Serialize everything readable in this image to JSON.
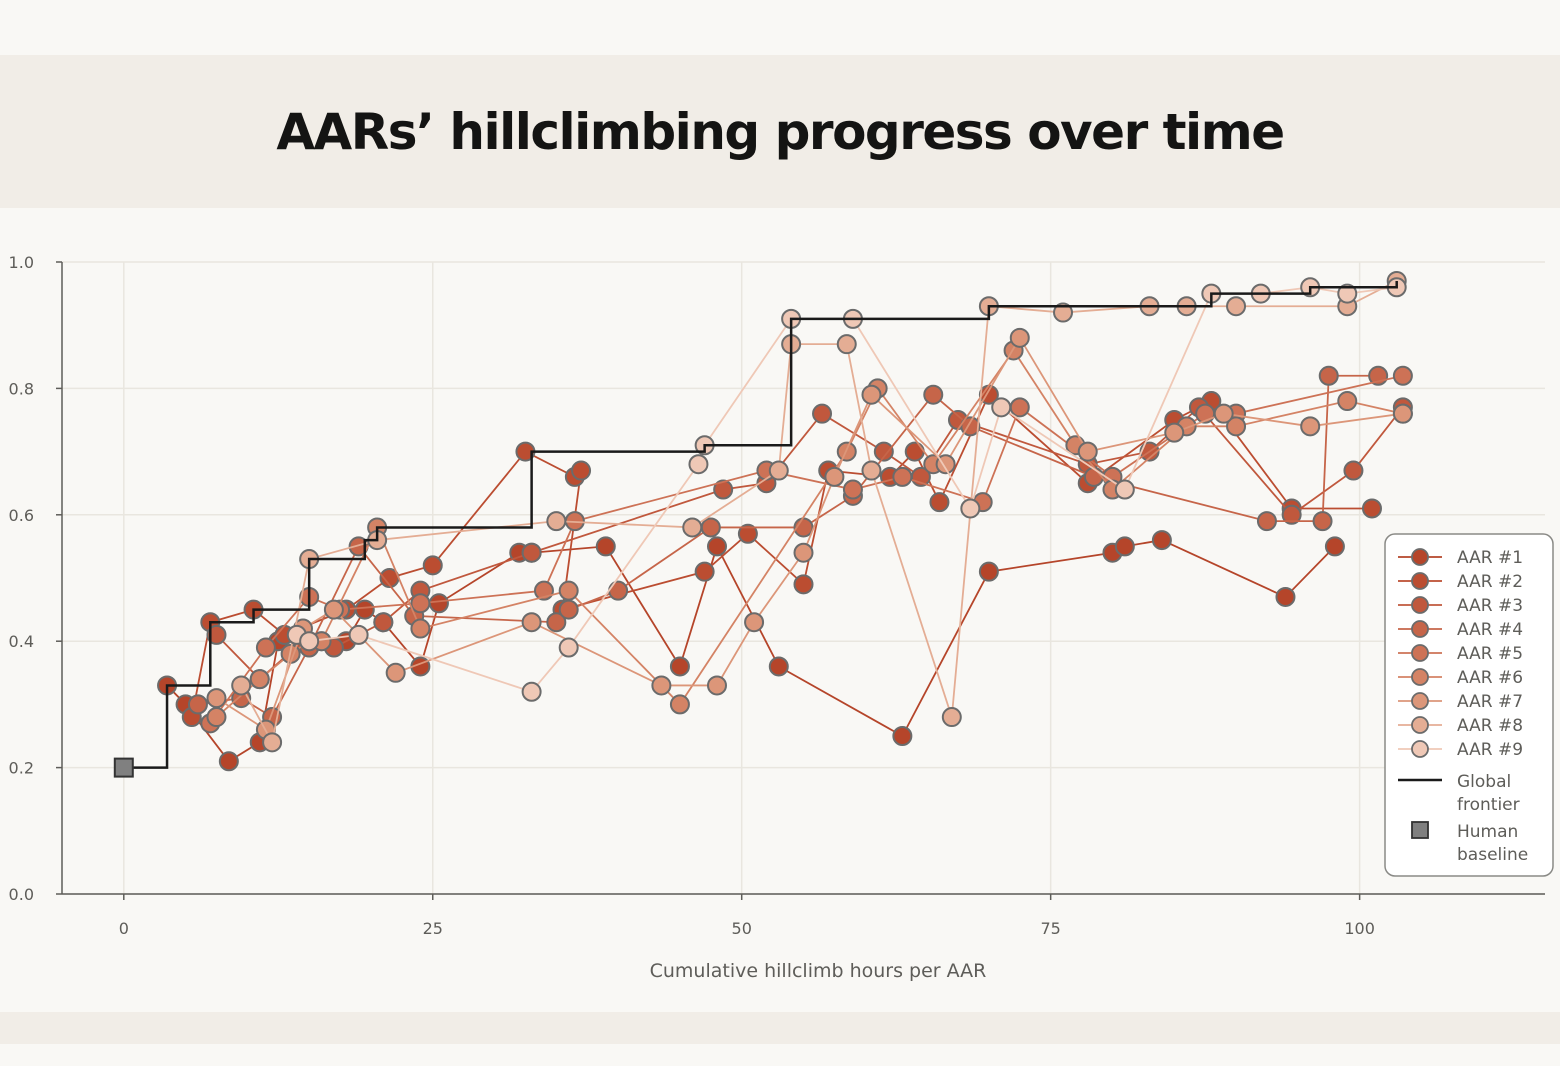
{
  "chart_data": {
    "type": "line",
    "title": "AARs’ hillclimbing progress over time",
    "xlabel": "Cumulative hillclimb hours per AAR",
    "ylabel": "",
    "xlim": [
      -5,
      115
    ],
    "ylim": [
      0,
      1
    ],
    "xticks": [
      0,
      25,
      50,
      75,
      100
    ],
    "yticks": [
      0.0,
      0.2,
      0.4,
      0.6,
      0.8,
      1.0
    ],
    "grid": true,
    "legend": "right",
    "series": [
      {
        "name": "AAR #1",
        "color": "#b5452a",
        "points": [
          [
            3.5,
            0.33
          ],
          [
            5,
            0.3
          ],
          [
            8.5,
            0.21
          ],
          [
            11,
            0.24
          ],
          [
            12.5,
            0.4
          ],
          [
            16,
            0.4
          ],
          [
            18,
            0.4
          ],
          [
            19.5,
            0.45
          ],
          [
            21,
            0.43
          ],
          [
            24,
            0.36
          ],
          [
            25.5,
            0.46
          ],
          [
            32,
            0.54
          ],
          [
            33,
            0.54
          ],
          [
            39,
            0.55
          ],
          [
            45,
            0.36
          ],
          [
            48,
            0.55
          ],
          [
            53,
            0.36
          ],
          [
            63,
            0.25
          ],
          [
            70,
            0.51
          ],
          [
            80,
            0.54
          ],
          [
            81,
            0.55
          ],
          [
            84,
            0.56
          ],
          [
            94,
            0.47
          ],
          [
            98,
            0.55
          ]
        ]
      },
      {
        "name": "AAR #2",
        "color": "#bb4d31",
        "points": [
          [
            5.5,
            0.28
          ],
          [
            7,
            0.43
          ],
          [
            10.5,
            0.45
          ],
          [
            13,
            0.41
          ],
          [
            18,
            0.45
          ],
          [
            21.5,
            0.5
          ],
          [
            25,
            0.52
          ],
          [
            32.5,
            0.7
          ],
          [
            36.5,
            0.66
          ],
          [
            37,
            0.67
          ],
          [
            35.5,
            0.45
          ],
          [
            47,
            0.51
          ],
          [
            50.5,
            0.57
          ],
          [
            55,
            0.49
          ],
          [
            57,
            0.67
          ],
          [
            62,
            0.66
          ],
          [
            64,
            0.7
          ],
          [
            66,
            0.62
          ],
          [
            70,
            0.79
          ],
          [
            78,
            0.65
          ],
          [
            85,
            0.75
          ],
          [
            88,
            0.78
          ],
          [
            94.5,
            0.61
          ],
          [
            101,
            0.61
          ]
        ]
      },
      {
        "name": "AAR #3",
        "color": "#c0583d",
        "points": [
          [
            7.5,
            0.41
          ],
          [
            11,
            0.34
          ],
          [
            14.5,
            0.4
          ],
          [
            17,
            0.39
          ],
          [
            21,
            0.43
          ],
          [
            24,
            0.48
          ],
          [
            33,
            0.54
          ],
          [
            48.5,
            0.64
          ],
          [
            52,
            0.65
          ],
          [
            56.5,
            0.76
          ],
          [
            61.5,
            0.7
          ],
          [
            64.5,
            0.66
          ],
          [
            67.5,
            0.75
          ],
          [
            78,
            0.68
          ],
          [
            83,
            0.7
          ],
          [
            87,
            0.77
          ],
          [
            94.5,
            0.6
          ],
          [
            99.5,
            0.67
          ],
          [
            103.5,
            0.77
          ]
        ]
      },
      {
        "name": "AAR #4",
        "color": "#c66549",
        "points": [
          [
            6,
            0.3
          ],
          [
            9.5,
            0.31
          ],
          [
            12,
            0.28
          ],
          [
            15,
            0.39
          ],
          [
            19,
            0.55
          ],
          [
            23.5,
            0.44
          ],
          [
            35,
            0.43
          ],
          [
            36,
            0.45
          ],
          [
            40,
            0.48
          ],
          [
            47.5,
            0.58
          ],
          [
            55,
            0.58
          ],
          [
            59,
            0.63
          ],
          [
            65.5,
            0.79
          ],
          [
            68.5,
            0.74
          ],
          [
            78.5,
            0.66
          ],
          [
            92.5,
            0.59
          ],
          [
            97,
            0.59
          ],
          [
            97.5,
            0.82
          ],
          [
            101.5,
            0.82
          ]
        ]
      },
      {
        "name": "AAR #5",
        "color": "#cd7256",
        "points": [
          [
            7,
            0.27
          ],
          [
            11.5,
            0.39
          ],
          [
            15,
            0.47
          ],
          [
            17.5,
            0.45
          ],
          [
            24,
            0.46
          ],
          [
            34,
            0.48
          ],
          [
            36.5,
            0.59
          ],
          [
            52,
            0.67
          ],
          [
            59,
            0.64
          ],
          [
            63,
            0.66
          ],
          [
            69.5,
            0.62
          ],
          [
            72.5,
            0.77
          ],
          [
            80,
            0.66
          ],
          [
            87.5,
            0.76
          ],
          [
            90,
            0.76
          ],
          [
            103.5,
            0.82
          ]
        ]
      },
      {
        "name": "AAR #6",
        "color": "#d48365",
        "points": [
          [
            7.5,
            0.28
          ],
          [
            11,
            0.34
          ],
          [
            13.5,
            0.38
          ],
          [
            15,
            0.4
          ],
          [
            16,
            0.4
          ],
          [
            20.5,
            0.58
          ],
          [
            24,
            0.42
          ],
          [
            36,
            0.48
          ],
          [
            45,
            0.3
          ],
          [
            58.5,
            0.7
          ],
          [
            61,
            0.8
          ],
          [
            65.5,
            0.68
          ],
          [
            72,
            0.86
          ],
          [
            77,
            0.71
          ],
          [
            80,
            0.64
          ],
          [
            86,
            0.74
          ],
          [
            90,
            0.74
          ],
          [
            99,
            0.78
          ],
          [
            103.5,
            0.76
          ]
        ]
      },
      {
        "name": "AAR #7",
        "color": "#dc9679",
        "points": [
          [
            7.5,
            0.31
          ],
          [
            11.5,
            0.26
          ],
          [
            14.5,
            0.42
          ],
          [
            17,
            0.45
          ],
          [
            22,
            0.35
          ],
          [
            33,
            0.43
          ],
          [
            43.5,
            0.33
          ],
          [
            48,
            0.33
          ],
          [
            51,
            0.43
          ],
          [
            55,
            0.54
          ],
          [
            57.5,
            0.66
          ],
          [
            60.5,
            0.79
          ],
          [
            66.5,
            0.68
          ],
          [
            72.5,
            0.88
          ],
          [
            78,
            0.7
          ],
          [
            85,
            0.73
          ],
          [
            89,
            0.76
          ],
          [
            96,
            0.74
          ],
          [
            103.5,
            0.76
          ]
        ]
      },
      {
        "name": "AAR #8",
        "color": "#e4ad94",
        "points": [
          [
            9.5,
            0.33
          ],
          [
            12,
            0.24
          ],
          [
            15,
            0.53
          ],
          [
            20.5,
            0.56
          ],
          [
            35,
            0.59
          ],
          [
            46,
            0.58
          ],
          [
            53,
            0.67
          ],
          [
            54,
            0.87
          ],
          [
            58.5,
            0.87
          ],
          [
            60.5,
            0.67
          ],
          [
            67,
            0.28
          ],
          [
            70,
            0.93
          ],
          [
            76,
            0.92
          ],
          [
            83,
            0.93
          ],
          [
            86,
            0.93
          ],
          [
            90,
            0.93
          ],
          [
            99,
            0.93
          ],
          [
            103,
            0.97
          ]
        ]
      },
      {
        "name": "AAR #9",
        "color": "#efc8b6",
        "points": [
          [
            14,
            0.41
          ],
          [
            15,
            0.4
          ],
          [
            19,
            0.41
          ],
          [
            33,
            0.32
          ],
          [
            36,
            0.39
          ],
          [
            46.5,
            0.68
          ],
          [
            47,
            0.71
          ],
          [
            54,
            0.91
          ],
          [
            59,
            0.91
          ],
          [
            68.5,
            0.61
          ],
          [
            71,
            0.77
          ],
          [
            81,
            0.64
          ],
          [
            88,
            0.95
          ],
          [
            92,
            0.95
          ],
          [
            96,
            0.96
          ],
          [
            99,
            0.95
          ],
          [
            103,
            0.96
          ]
        ]
      }
    ],
    "global_frontier": {
      "name": "Global frontier",
      "color": "#1a1a1a",
      "x": [
        0,
        3.5,
        7,
        10.5,
        15,
        19.5,
        20.5,
        33,
        47,
        54,
        70,
        88,
        96,
        103
      ],
      "y": [
        0.2,
        0.33,
        0.43,
        0.45,
        0.53,
        0.56,
        0.58,
        0.7,
        0.71,
        0.91,
        0.93,
        0.95,
        0.96,
        0.97
      ]
    },
    "human_baseline": {
      "name": "Human baseline",
      "x": 0,
      "y": 0.2,
      "color": "#808080"
    }
  }
}
